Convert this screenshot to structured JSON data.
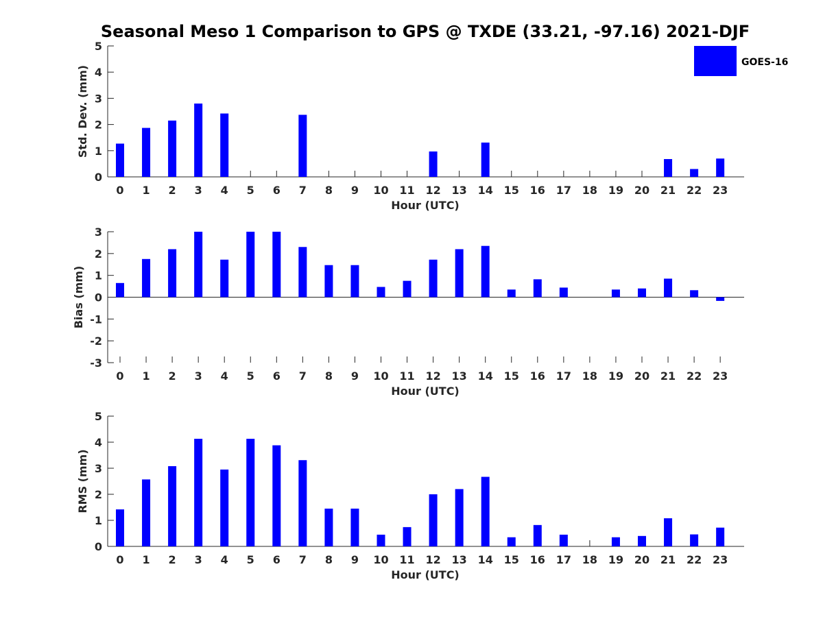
{
  "title": "Seasonal Meso 1 Comparison to GPS @ TXDE (33.21, -97.16) 2021-DJF",
  "legend": {
    "label": "GOES-16",
    "color": "#0000ff"
  },
  "colors": {
    "bar": "#0000ff",
    "axis": "#262626"
  },
  "chart_data": [
    {
      "type": "bar",
      "xlabel": "Hour (UTC)",
      "ylabel": "Std. Dev. (mm)",
      "ylim": [
        0,
        5
      ],
      "yticks": [
        0,
        1,
        2,
        3,
        4,
        5
      ],
      "categories": [
        "0",
        "1",
        "2",
        "3",
        "4",
        "5",
        "6",
        "7",
        "8",
        "9",
        "10",
        "11",
        "12",
        "13",
        "14",
        "15",
        "16",
        "17",
        "18",
        "19",
        "20",
        "21",
        "22",
        "23"
      ],
      "series": [
        {
          "name": "GOES-16",
          "values": [
            1.27,
            1.87,
            2.15,
            2.8,
            2.42,
            0,
            0,
            2.37,
            0,
            0,
            0,
            0,
            0.97,
            0,
            1.31,
            0,
            0,
            0,
            0,
            0,
            0,
            0.68,
            0.3,
            0.7
          ]
        }
      ],
      "grid": false
    },
    {
      "type": "bar",
      "xlabel": "Hour (UTC)",
      "ylabel": "Bias (mm)",
      "ylim": [
        -3,
        3
      ],
      "yticks": [
        -3,
        -2,
        -1,
        0,
        1,
        2,
        3
      ],
      "categories": [
        "0",
        "1",
        "2",
        "3",
        "4",
        "5",
        "6",
        "7",
        "8",
        "9",
        "10",
        "11",
        "12",
        "13",
        "14",
        "15",
        "16",
        "17",
        "18",
        "19",
        "20",
        "21",
        "22",
        "23"
      ],
      "series": [
        {
          "name": "GOES-16",
          "values": [
            0.65,
            1.75,
            2.2,
            3.0,
            1.72,
            3.0,
            3.0,
            2.3,
            1.47,
            1.47,
            0.47,
            0.75,
            1.72,
            2.2,
            2.35,
            0.35,
            0.82,
            0.44,
            0,
            0.35,
            0.4,
            0.85,
            0.32,
            -0.17
          ]
        }
      ],
      "grid": false
    },
    {
      "type": "bar",
      "xlabel": "Hour (UTC)",
      "ylabel": "RMS (mm)",
      "ylim": [
        0,
        5
      ],
      "yticks": [
        0,
        1,
        2,
        3,
        4,
        5
      ],
      "categories": [
        "0",
        "1",
        "2",
        "3",
        "4",
        "5",
        "6",
        "7",
        "8",
        "9",
        "10",
        "11",
        "12",
        "13",
        "14",
        "15",
        "16",
        "17",
        "18",
        "19",
        "20",
        "21",
        "22",
        "23"
      ],
      "series": [
        {
          "name": "GOES-16",
          "values": [
            1.42,
            2.57,
            3.08,
            4.13,
            2.95,
            4.13,
            3.88,
            3.31,
            1.45,
            1.45,
            0.45,
            0.74,
            2.0,
            2.2,
            2.67,
            0.35,
            0.82,
            0.45,
            0,
            0.35,
            0.4,
            1.08,
            0.46,
            0.72
          ]
        }
      ],
      "grid": false
    }
  ]
}
